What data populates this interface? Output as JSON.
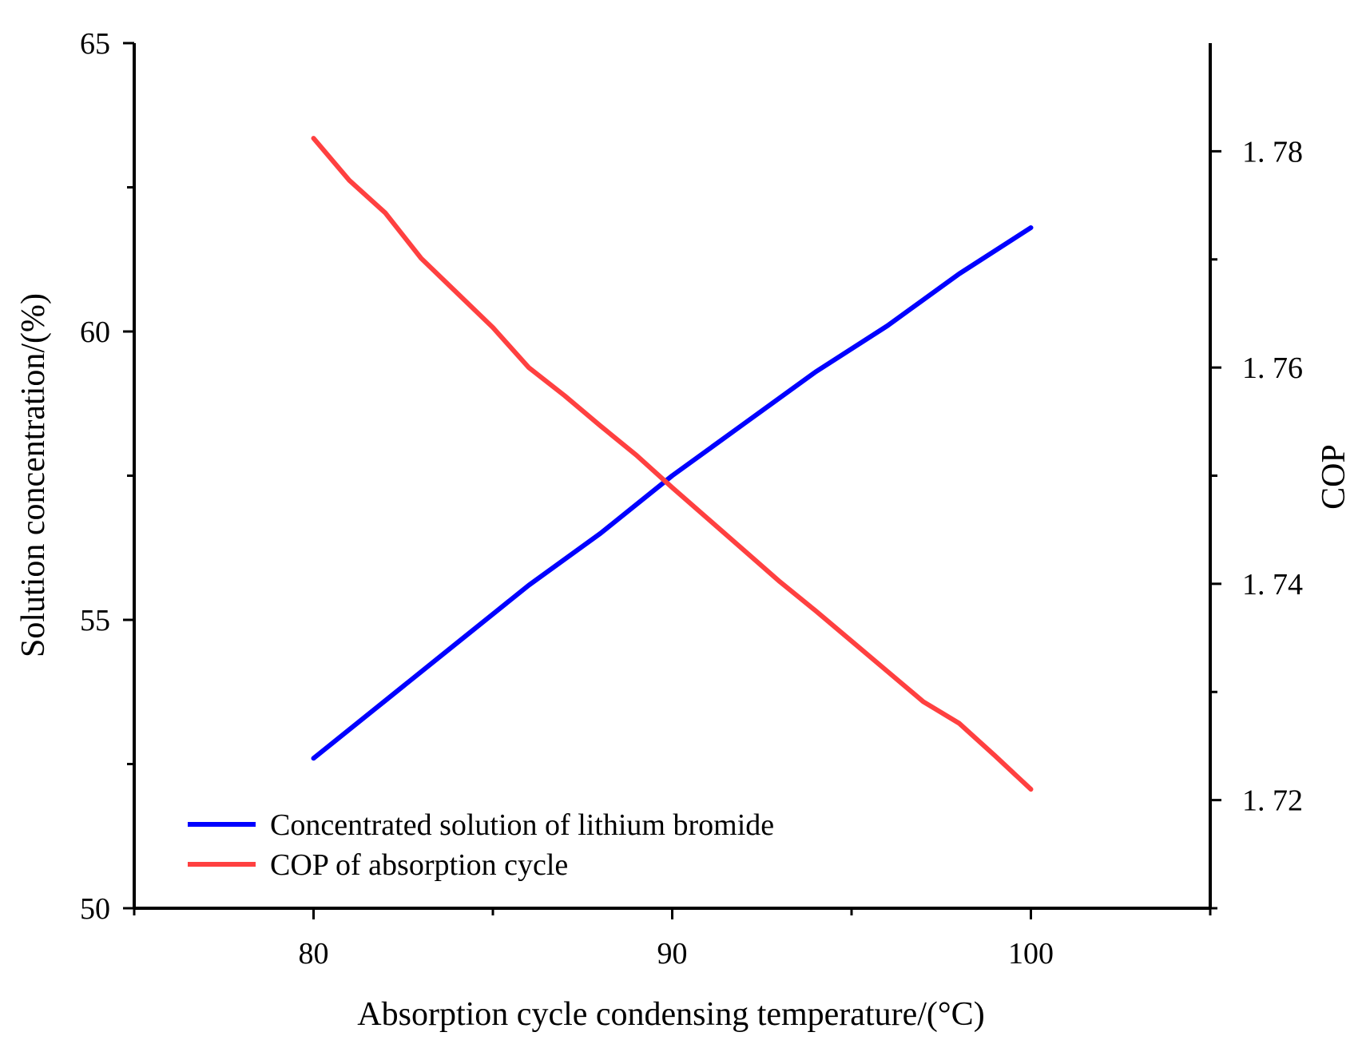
{
  "chart_data": {
    "type": "line",
    "xlabel": "Absorption cycle condensing temperature/(°C)",
    "ylabel": "Solution concentration/(%)",
    "y2label": "COP",
    "xlim": [
      75,
      105
    ],
    "ylim": [
      50,
      65
    ],
    "y2lim": [
      1.71,
      1.79
    ],
    "xticks": [
      80,
      90,
      100
    ],
    "xtick_labels": [
      "80",
      "90",
      "100"
    ],
    "yticks": [
      50,
      55,
      60,
      65
    ],
    "ytick_labels": [
      "50",
      "55",
      "60",
      "65"
    ],
    "y2ticks": [
      1.72,
      1.74,
      1.76,
      1.78
    ],
    "y2tick_labels": [
      "1. 72",
      "1. 74",
      "1. 76",
      "1. 78"
    ],
    "legend_position": "bottom-left",
    "series": [
      {
        "name": "Concentrated solution of lithium bromide",
        "axis": "left",
        "color": "#0000ff",
        "x": [
          80,
          82,
          84,
          86,
          88,
          90,
          92,
          94,
          96,
          98,
          100
        ],
        "y": [
          52.6,
          53.6,
          54.6,
          55.6,
          56.5,
          57.5,
          58.4,
          59.3,
          60.1,
          61.0,
          61.8
        ]
      },
      {
        "name": "COP of absorption cycle",
        "axis": "right",
        "color": "#ff4040",
        "x": [
          80,
          81,
          82,
          83,
          84,
          85,
          86,
          87,
          88,
          89,
          90,
          91,
          92,
          93,
          94,
          95,
          96,
          97,
          98,
          99,
          100
        ],
        "y": [
          1.7812,
          1.7773,
          1.7743,
          1.7701,
          1.7669,
          1.7637,
          1.76,
          1.7574,
          1.7546,
          1.7519,
          1.7489,
          1.746,
          1.7431,
          1.7402,
          1.7375,
          1.7347,
          1.7319,
          1.7291,
          1.7271,
          1.7241,
          1.721
        ]
      }
    ]
  }
}
